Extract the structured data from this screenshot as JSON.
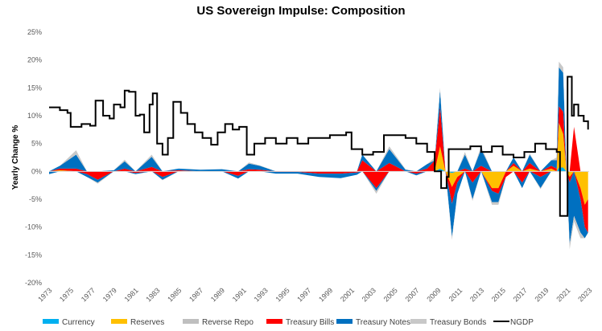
{
  "chart_data": {
    "type": "area",
    "title": "US Sovereign Impulse: Composition",
    "xlabel": "",
    "ylabel": "Yearly Change %",
    "ylim": [
      -20,
      25
    ],
    "xlim": [
      1973,
      2023
    ],
    "y_ticks": [
      "25%",
      "20%",
      "15%",
      "10%",
      "5%",
      "0%",
      "-5%",
      "-10%",
      "-15%",
      "-20%"
    ],
    "y_tick_values": [
      25,
      20,
      15,
      10,
      5,
      0,
      -5,
      -10,
      -15,
      -20
    ],
    "x_ticks": [
      "1973",
      "1975",
      "1977",
      "1979",
      "1981",
      "1983",
      "1985",
      "1987",
      "1989",
      "1991",
      "1993",
      "1995",
      "1997",
      "1999",
      "2001",
      "2003",
      "2005",
      "2007",
      "2009",
      "2011",
      "2013",
      "2015",
      "2017",
      "2019",
      "2021",
      "2023"
    ],
    "legend_position": "bottom",
    "grid": false,
    "stacked_series": [
      {
        "name": "Currency",
        "color": "#00B0F0"
      },
      {
        "name": "Reserves",
        "color": "#FFC000"
      },
      {
        "name": "Reverse Repo",
        "color": "#BFBFBF"
      },
      {
        "name": "Treasury Bills",
        "color": "#FF0000"
      },
      {
        "name": "Treasury Notes",
        "color": "#0070C0"
      },
      {
        "name": "Treasury Bonds",
        "color": "#C8C8C8"
      }
    ],
    "stack_x": [
      1973,
      1974,
      1975.5,
      1976.5,
      1977.5,
      1979,
      1980,
      1981,
      1982.5,
      1983.5,
      1985,
      1987,
      1989,
      1990.5,
      1991.5,
      1992.5,
      1994,
      1996,
      1998,
      2000,
      2001.5,
      2002,
      2003.3,
      2004.5,
      2006,
      2007,
      2008,
      2008.7,
      2009.2,
      2009.7,
      2010.3,
      2010.8,
      2011.5,
      2012.2,
      2013,
      2014,
      2014.6,
      2015.3,
      2016,
      2016.8,
      2017.5,
      2018.5,
      2019.5,
      2020,
      2020.2,
      2020.6,
      2020.9,
      2021.2,
      2021.6,
      2022.2,
      2022.6,
      2022.9
    ],
    "stack_values": {
      "Currency": [
        0,
        0,
        0,
        0,
        0,
        0,
        0,
        0,
        0,
        0,
        0,
        0,
        0,
        0,
        0,
        0,
        0,
        0,
        0,
        0,
        0,
        0,
        0,
        0,
        0,
        0,
        0,
        0,
        0.5,
        0,
        -0.3,
        0,
        0,
        0,
        0,
        0,
        0,
        0,
        0,
        0,
        0,
        0,
        0,
        0,
        0.7,
        0.7,
        0,
        0,
        0,
        0,
        0,
        0
      ],
      "Reserves": [
        0,
        0.2,
        0,
        0,
        0,
        0,
        0,
        0,
        0,
        0,
        0,
        0,
        0,
        0,
        0,
        0,
        0,
        0,
        0,
        0,
        0,
        0,
        0,
        0,
        0,
        0,
        0,
        0,
        4,
        0,
        -2.5,
        -1,
        0,
        0,
        0,
        -3,
        -3,
        0,
        1,
        0,
        0.5,
        0,
        0.5,
        0,
        8,
        6,
        0,
        -1,
        0,
        -3,
        -6,
        -5
      ],
      "Reverse Repo": [
        0,
        0,
        0,
        0,
        0,
        0,
        0,
        0,
        0,
        0,
        0,
        0,
        0,
        0,
        0,
        0,
        0,
        0,
        0,
        0,
        0,
        0,
        0,
        0,
        0,
        0,
        0,
        0,
        0,
        0,
        0,
        0,
        0,
        0,
        0,
        0,
        0,
        0,
        0,
        0,
        0,
        0,
        0,
        0,
        0,
        0,
        0,
        0,
        0,
        0,
        0,
        0
      ],
      "Treasury Bills": [
        0,
        0.3,
        0.5,
        -0.5,
        -1.5,
        0,
        0.5,
        -0.3,
        0.8,
        -1,
        0.2,
        0,
        0,
        -0.8,
        0.4,
        0.3,
        -0.1,
        -0.1,
        -0.4,
        -0.4,
        -0.2,
        2,
        -3,
        1.5,
        0,
        -0.4,
        0.5,
        2,
        7,
        0,
        -3,
        -1,
        0.5,
        -2,
        1,
        -0.5,
        -1,
        -1,
        0.5,
        -2,
        1,
        -1,
        0.5,
        0.5,
        3,
        4,
        0,
        -1,
        8,
        -2,
        -4,
        -6
      ],
      "Treasury Notes": [
        -0.5,
        0.5,
        2.5,
        -0.5,
        -0.5,
        0.2,
        1.3,
        -0.2,
        1.8,
        -0.5,
        0.3,
        0.3,
        0.4,
        -0.5,
        1,
        0.7,
        -0.3,
        -0.3,
        -0.6,
        -0.8,
        -0.4,
        1,
        -0.5,
        2.5,
        0.3,
        -0.3,
        0.8,
        0,
        3,
        0,
        -6,
        -2,
        2.5,
        -3,
        3,
        -2,
        -1.5,
        0,
        1,
        -1,
        1.5,
        -2,
        1,
        1.5,
        7,
        7,
        0,
        -11,
        -8,
        -6,
        -2,
        0
      ],
      "Treasury Bonds": [
        0,
        0,
        0.8,
        0,
        -0.2,
        0,
        0.3,
        0,
        0.4,
        -0.1,
        0,
        0,
        0,
        0,
        0.2,
        0.1,
        0,
        0,
        0,
        0,
        0,
        0,
        -0.5,
        0.5,
        0.1,
        0,
        0,
        0.5,
        0.5,
        0,
        -0.5,
        0,
        0.5,
        -0.3,
        0.5,
        -0.5,
        -0.5,
        0,
        0,
        0,
        0.2,
        -0.2,
        0,
        0.5,
        1,
        1,
        0,
        -1,
        -1,
        -1,
        0,
        0
      ]
    },
    "line_series": {
      "name": "NGDP",
      "color": "#000000",
      "x": [
        1973,
        1974,
        1974.7,
        1975,
        1976,
        1976.8,
        1977.3,
        1978,
        1978.6,
        1979,
        1979.6,
        1980,
        1980.4,
        1981,
        1981.4,
        1981.8,
        1982.3,
        1982.6,
        1983,
        1983.5,
        1984,
        1984.5,
        1985.2,
        1985.8,
        1986.5,
        1987.2,
        1988,
        1988.6,
        1989.3,
        1990,
        1990.6,
        1991.3,
        1992,
        1993,
        1994,
        1995,
        1996,
        1997,
        1998,
        1999,
        2000,
        2000.5,
        2001,
        2002,
        2003,
        2004,
        2005,
        2006,
        2007,
        2008,
        2008.7,
        2009.3,
        2009.8,
        2010,
        2011,
        2012,
        2013,
        2014,
        2015,
        2016,
        2017,
        2018,
        2019,
        2020,
        2020.2,
        2020.3,
        2020.7,
        2021,
        2021.3,
        2021.4,
        2021.6,
        2022,
        2022.5,
        2022.9
      ],
      "values": [
        11.5,
        11,
        10.5,
        8,
        8.5,
        8.2,
        12.7,
        10,
        9.5,
        12,
        11.5,
        14.5,
        14.3,
        10,
        10.2,
        7,
        12,
        14,
        5,
        3,
        6,
        12.5,
        10.5,
        8.5,
        7,
        6,
        4.8,
        7,
        8.5,
        7.5,
        8,
        3,
        5,
        6,
        5,
        6,
        5,
        6,
        6,
        6.5,
        6.5,
        7,
        4,
        3,
        3.5,
        6.5,
        6.5,
        6,
        5,
        3.5,
        0,
        -3,
        -1,
        4,
        4,
        4.5,
        3.5,
        4.5,
        3,
        2.5,
        3.5,
        5,
        4,
        3.5,
        3.5,
        -8,
        -8,
        17,
        17,
        10,
        12,
        10,
        9,
        7.5
      ]
    }
  }
}
